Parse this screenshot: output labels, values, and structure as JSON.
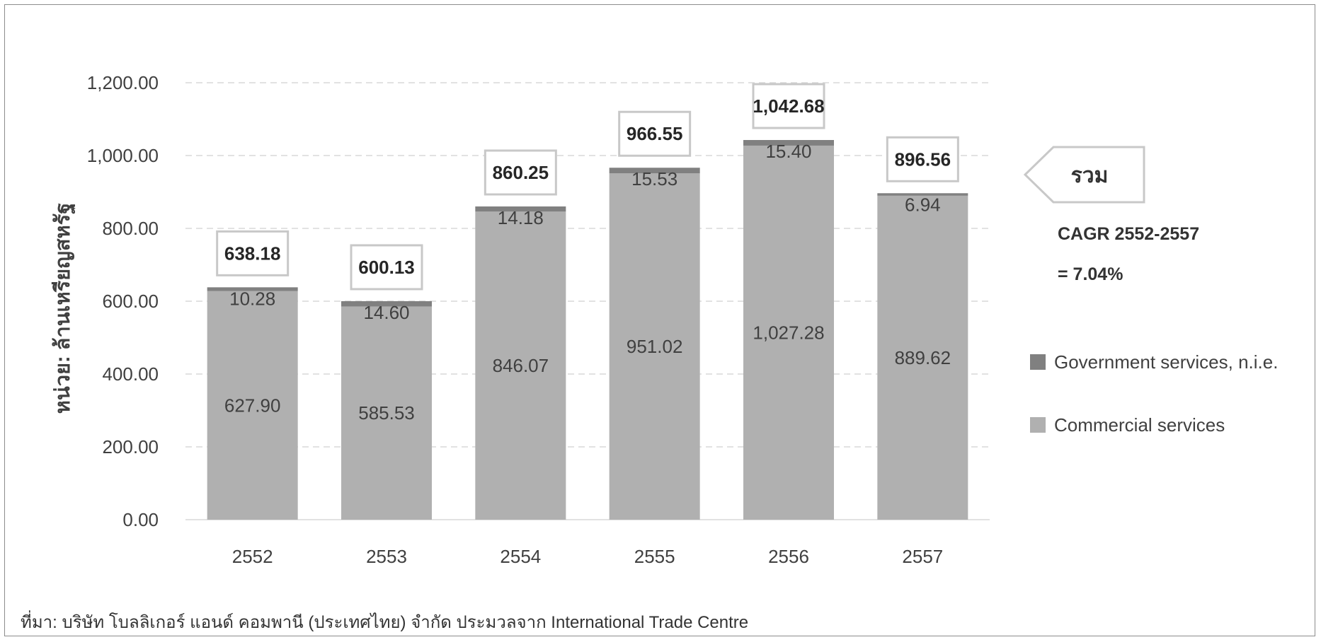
{
  "chart_data": {
    "type": "bar",
    "stacked": true,
    "categories": [
      "2552",
      "2553",
      "2554",
      "2555",
      "2556",
      "2557"
    ],
    "series": [
      {
        "name": "Commercial services",
        "color": "#b0b0b0",
        "values": [
          627.9,
          585.53,
          846.07,
          951.02,
          1027.28,
          889.62
        ]
      },
      {
        "name": "Government services, n.i.e.",
        "color": "#808080",
        "values": [
          10.28,
          14.6,
          14.18,
          15.53,
          15.4,
          6.94
        ]
      }
    ],
    "segment_labels": {
      "Commercial services": [
        "627.90",
        "585.53",
        "846.07",
        "951.02",
        "1,027.28",
        "889.62"
      ],
      "Government services, n.i.e.": [
        "10.28",
        "14.60",
        "14.18",
        "15.53",
        "15.40",
        "6.94"
      ]
    },
    "totals": [
      638.18,
      600.13,
      860.25,
      966.55,
      1042.68,
      896.56
    ],
    "total_labels": [
      "638.18",
      "600.13",
      "860.25",
      "966.55",
      "1,042.68",
      "896.56"
    ],
    "ylabel": "หน่วย: ล้านเหรียญสหรัฐ",
    "ylim": [
      0,
      1200
    ],
    "yticks": [
      "0.00",
      "200.00",
      "400.00",
      "600.00",
      "800.00",
      "1,000.00",
      "1,200.00"
    ],
    "grid": true,
    "legend_position": "right",
    "legend": [
      "Government services, n.i.e.",
      "Commercial services"
    ],
    "callout": "รวม",
    "cagr_line1": "CAGR 2552-2557",
    "cagr_line2": "= 7.04%",
    "source": "ที่มา: บริษัท โบลลิเกอร์ แอนด์ คอมพานี (ประเทศไทย) จำกัด ประมวลจาก International Trade Centre"
  }
}
